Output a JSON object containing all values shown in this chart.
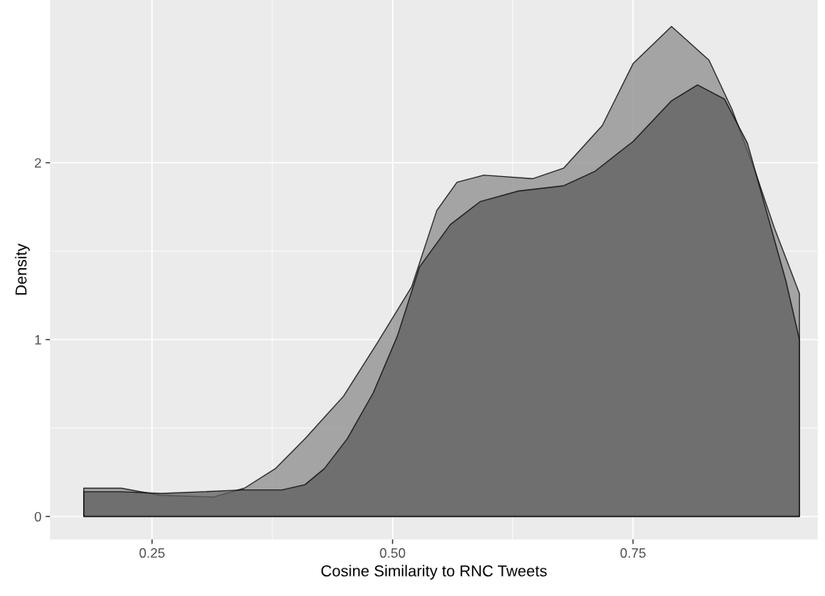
{
  "chart_data": {
    "type": "area",
    "xlabel": "Cosine Similarity to RNC Tweets",
    "ylabel": "Density",
    "xlim": [
      0.144,
      0.942
    ],
    "ylim": [
      -0.13,
      2.92
    ],
    "xticks": [
      {
        "value": 0.25,
        "label": "0.25"
      },
      {
        "value": 0.5,
        "label": "0.50"
      },
      {
        "value": 0.75,
        "label": "0.75"
      }
    ],
    "yticks": [
      0,
      1,
      2
    ],
    "grid": true,
    "series": [
      {
        "color": "#8c8c8c",
        "x": [
          0.179,
          0.218,
          0.258,
          0.314,
          0.346,
          0.378,
          0.409,
          0.449,
          0.484,
          0.52,
          0.546,
          0.567,
          0.595,
          0.646,
          0.678,
          0.718,
          0.75,
          0.79,
          0.829,
          0.853,
          0.877,
          0.897,
          0.909,
          0.923
        ],
        "values": [
          0.16,
          0.16,
          0.12,
          0.11,
          0.16,
          0.27,
          0.44,
          0.68,
          0.98,
          1.3,
          1.73,
          1.89,
          1.93,
          1.91,
          1.97,
          2.21,
          2.56,
          2.77,
          2.58,
          2.3,
          1.95,
          1.63,
          1.46,
          1.26
        ]
      },
      {
        "color": "#5e5e5e",
        "x": [
          0.179,
          0.218,
          0.26,
          0.302,
          0.344,
          0.385,
          0.409,
          0.429,
          0.453,
          0.48,
          0.505,
          0.528,
          0.56,
          0.591,
          0.631,
          0.678,
          0.71,
          0.75,
          0.79,
          0.817,
          0.845,
          0.869,
          0.889,
          0.909,
          0.923
        ],
        "values": [
          0.14,
          0.14,
          0.13,
          0.14,
          0.15,
          0.15,
          0.18,
          0.27,
          0.44,
          0.7,
          1.02,
          1.41,
          1.65,
          1.78,
          1.84,
          1.87,
          1.95,
          2.12,
          2.35,
          2.44,
          2.36,
          2.11,
          1.72,
          1.33,
          1.0
        ]
      }
    ]
  }
}
